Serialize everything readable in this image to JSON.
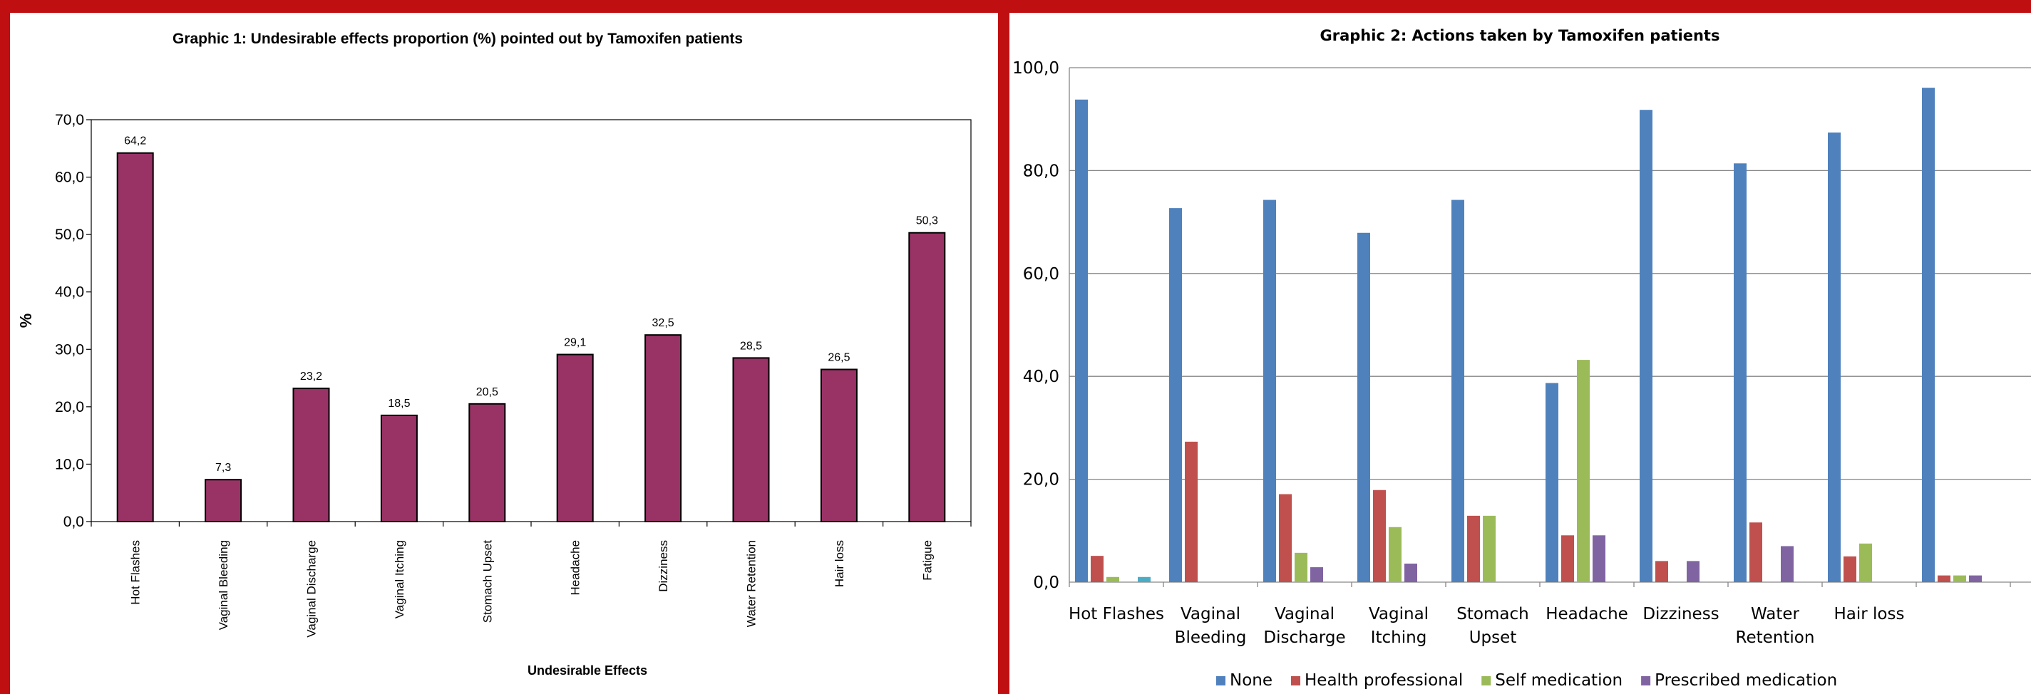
{
  "chart_data": [
    {
      "type": "bar",
      "title": "Graphic 1: Undesirable effects proportion  (%)  pointed out by Tamoxifen  patients",
      "xlabel": "Undesirable Effects",
      "ylabel": "%",
      "ylim": [
        0,
        70
      ],
      "yticks": [
        "0,0",
        "10,0",
        "20,0",
        "30,0",
        "40,0",
        "50,0",
        "60,0",
        "70,0"
      ],
      "grid": false,
      "categories": [
        "Hot  Flashes",
        "Vaginal Bleeding",
        "Vaginal Discharge",
        "Vaginal Itching",
        "Stomach Upset",
        "Headache",
        "Dizziness",
        "Water Retention",
        "Hair loss",
        "Fatigue"
      ],
      "values": [
        64.2,
        7.3,
        23.2,
        18.5,
        20.5,
        29.1,
        32.5,
        28.5,
        26.5,
        50.3
      ],
      "data_labels": [
        "64,2",
        "7,3",
        "23,2",
        "18,5",
        "20,5",
        "29,1",
        "32,5",
        "28,5",
        "26,5",
        "50,3"
      ],
      "color": "#993366"
    },
    {
      "type": "bar",
      "title": "Graphic 2: Actions taken by Tamoxifen patients",
      "ylim": [
        0,
        100
      ],
      "yticks": [
        "0,0",
        "20,0",
        "40,0",
        "60,0",
        "80,0",
        "100,0"
      ],
      "grid": true,
      "legend": "bottom",
      "categories": [
        [
          "Hot  Flashes"
        ],
        [
          "Vaginal",
          "Bleeding"
        ],
        [
          "Vaginal",
          "Discharge"
        ],
        [
          "Vaginal",
          "Itching"
        ],
        [
          "Stomach",
          "Upset"
        ],
        [
          "Headache"
        ],
        [
          "Dizziness"
        ],
        [
          "Water",
          "Retention"
        ],
        [
          "Hair loss"
        ],
        [
          ""
        ]
      ],
      "series": [
        {
          "name": "None",
          "color": "#4f81bd",
          "values": [
            93.8,
            72.7,
            74.3,
            67.9,
            74.3,
            38.7,
            91.8,
            81.4,
            87.4,
            96.1
          ]
        },
        {
          "name": "Health professional",
          "color": "#c0504d",
          "values": [
            5.1,
            27.3,
            17.1,
            17.9,
            12.9,
            9.1,
            4.1,
            11.6,
            5.0,
            1.3
          ]
        },
        {
          "name": "Self medication",
          "color": "#9bbb59",
          "values": [
            1.0,
            0,
            5.7,
            10.7,
            12.9,
            43.2,
            0,
            0,
            7.5,
            1.3
          ]
        },
        {
          "name": "Prescribed medication",
          "color": "#8064a2",
          "values": [
            0,
            0,
            2.9,
            3.6,
            0,
            9.1,
            4.1,
            7.0,
            0,
            1.3
          ]
        },
        {
          "name": "",
          "color": "#4bacc6",
          "values": [
            1.0,
            0,
            0,
            0,
            0,
            0,
            0,
            0,
            0,
            0
          ]
        }
      ]
    }
  ]
}
